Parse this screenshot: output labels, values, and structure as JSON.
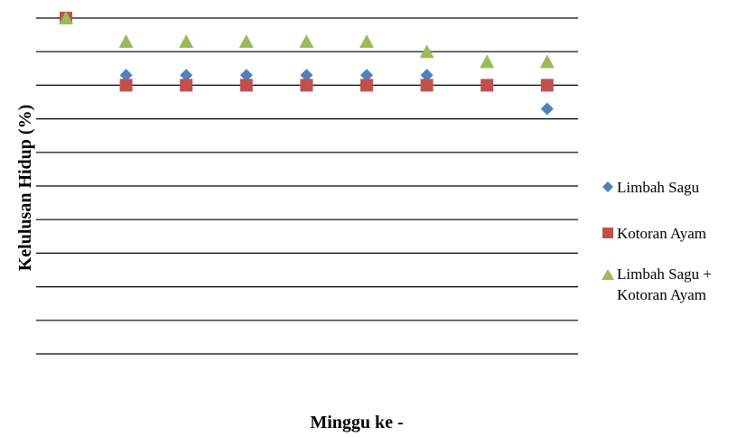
{
  "chart_data": {
    "type": "scatter",
    "title": "",
    "xlabel": "Minggu ke -",
    "ylabel": "Kelulusan Hidup (%)",
    "x": [
      1,
      2,
      3,
      4,
      5,
      6,
      7,
      8,
      9
    ],
    "xlim": [
      0.5,
      9.5
    ],
    "ylim": [
      0,
      100
    ],
    "grid": true,
    "legend_position": "right",
    "series": [
      {
        "name": "Limbah Sagu",
        "marker": "diamond",
        "color": "#4f81bd",
        "x": [
          1,
          2,
          3,
          4,
          5,
          6,
          7,
          8,
          9
        ],
        "y": [
          100,
          83,
          83,
          83,
          83,
          83,
          83,
          80,
          73
        ]
      },
      {
        "name": "Kotoran Ayam",
        "marker": "square",
        "color": "#c0504d",
        "x": [
          1,
          2,
          3,
          4,
          5,
          6,
          7,
          8,
          9
        ],
        "y": [
          100,
          80,
          80,
          80,
          80,
          80,
          80,
          80,
          80
        ]
      },
      {
        "name": "Limbah Sagu + Kotoran Ayam",
        "legend_lines": [
          "Limbah Sagu +",
          "Kotoran Ayam"
        ],
        "marker": "triangle",
        "color": "#9bbb59",
        "x": [
          1,
          2,
          3,
          4,
          5,
          6,
          7,
          8,
          9
        ],
        "y": [
          100,
          93,
          93,
          93,
          93,
          93,
          90,
          87,
          87
        ]
      }
    ]
  }
}
